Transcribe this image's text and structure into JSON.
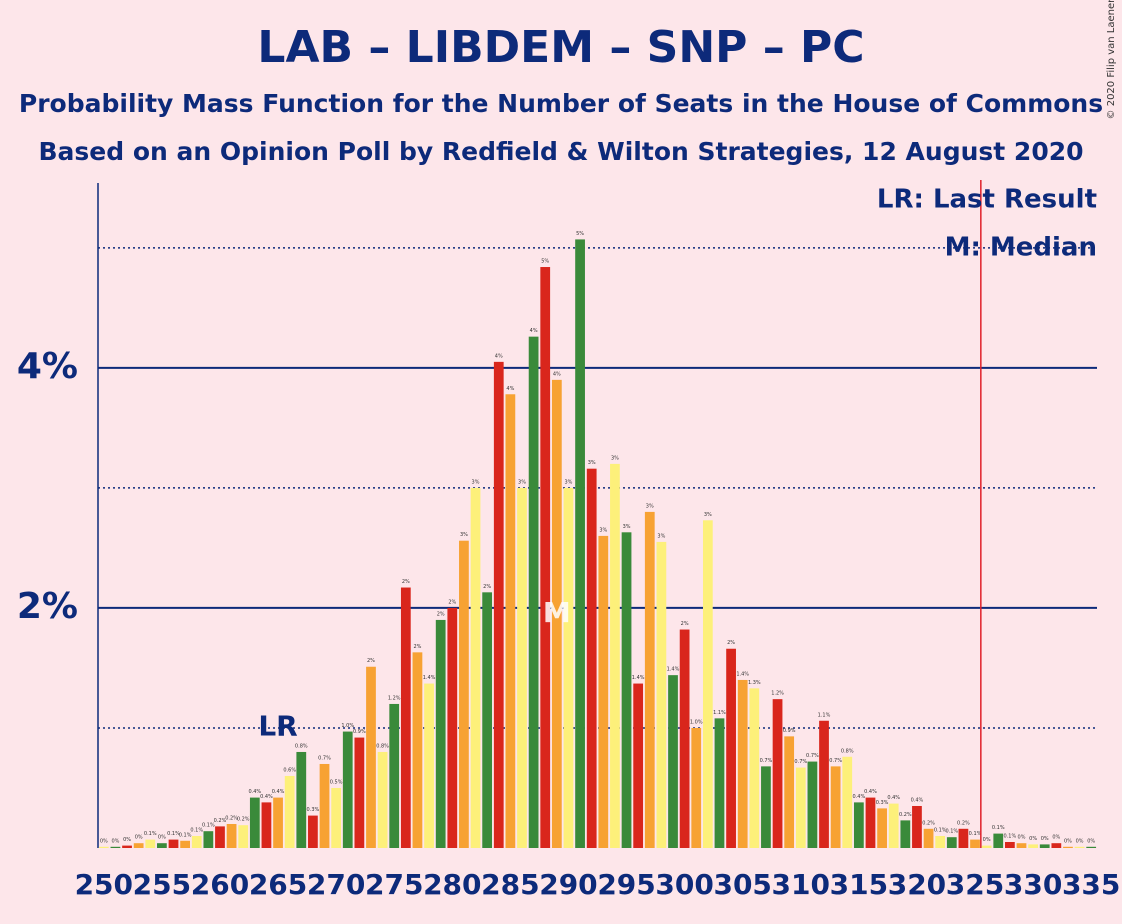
{
  "chart_data": {
    "type": "bar",
    "title": "LAB – LIBDEM – SNP – PC",
    "subtitle": "Probability Mass Function for the Number of Seats in the House of Commons",
    "subtitle2": "Based on an Opinion Poll by Redfield & Wilton Strategies, 12 August 2020",
    "copyright": "© 2020 Filip van Laenen",
    "legend": [
      "LR: Last Result",
      "M: Median"
    ],
    "x": [
      250,
      251,
      252,
      253,
      254,
      255,
      256,
      257,
      258,
      259,
      260,
      261,
      262,
      263,
      264,
      265,
      266,
      267,
      268,
      269,
      270,
      271,
      272,
      273,
      274,
      275,
      276,
      277,
      278,
      279,
      280,
      281,
      282,
      283,
      284,
      285,
      286,
      287,
      288,
      289,
      290,
      291,
      292,
      293,
      294,
      295,
      296,
      297,
      298,
      299,
      300,
      301,
      302,
      303,
      304,
      305,
      306,
      307,
      308,
      309,
      310,
      311,
      312,
      313,
      314,
      315,
      316,
      317,
      318,
      319,
      320,
      321,
      322,
      323,
      324,
      325,
      326,
      327,
      328,
      329,
      330,
      331,
      332,
      333,
      334,
      335
    ],
    "values": [
      0.01,
      0.01,
      0.02,
      0.04,
      0.07,
      0.04,
      0.07,
      0.06,
      0.1,
      0.14,
      0.18,
      0.2,
      0.19,
      0.42,
      0.38,
      0.42,
      0.6,
      0.8,
      0.27,
      0.7,
      0.5,
      0.97,
      0.92,
      1.51,
      0.8,
      1.2,
      2.17,
      1.63,
      1.37,
      1.9,
      2.0,
      2.56,
      3.0,
      2.13,
      4.05,
      3.78,
      3.0,
      4.26,
      4.84,
      3.9,
      3.0,
      5.07,
      3.16,
      2.6,
      3.2,
      2.63,
      1.37,
      2.8,
      2.55,
      1.44,
      1.82,
      1.0,
      2.73,
      1.08,
      1.66,
      1.4,
      1.33,
      0.68,
      1.24,
      0.93,
      0.67,
      0.72,
      1.06,
      0.68,
      0.76,
      0.38,
      0.42,
      0.33,
      0.37,
      0.23,
      0.35,
      0.16,
      0.1,
      0.09,
      0.16,
      0.07,
      0.02,
      0.12,
      0.05,
      0.04,
      0.03,
      0.03,
      0.04,
      0.01,
      0.01,
      0.01
    ],
    "value_labels": [
      "0%",
      "0%",
      "0%",
      "0%",
      "0.1%",
      "0%",
      "0.1%",
      "0.1%",
      "0.1%",
      "0.1%",
      "0.2%",
      "0.2%",
      "0.2%",
      "0.4%",
      "0.4%",
      "0.4%",
      "0.6%",
      "0.8%",
      "0.3%",
      "0.7%",
      "0.5%",
      "1.0%",
      "0.9%",
      "2%",
      "0.8%",
      "1.2%",
      "2%",
      "2%",
      "1.4%",
      "2%",
      "2%",
      "3%",
      "3%",
      "2%",
      "4%",
      "4%",
      "3%",
      "4%",
      "5%",
      "4%",
      "3%",
      "5%",
      "3%",
      "3%",
      "3%",
      "3%",
      "1.4%",
      "3%",
      "3%",
      "1.4%",
      "2%",
      "1.0%",
      "3%",
      "1.1%",
      "2%",
      "1.4%",
      "1.3%",
      "0.7%",
      "1.2%",
      "0.9%",
      "0.7%",
      "0.7%",
      "1.1%",
      "0.7%",
      "0.8%",
      "0.4%",
      "0.4%",
      "0.3%",
      "0.4%",
      "0.2%",
      "0.4%",
      "0.2%",
      "0.1%",
      "0.1%",
      "0.2%",
      "0.1%",
      "0%",
      "0.1%",
      "0.1%",
      "0%",
      "0%",
      "0%",
      "0%",
      "0%",
      "0%",
      "0%"
    ],
    "colors": [
      "#fdf07a",
      "#3a8a3a",
      "#d9261c",
      "#f7a233"
    ],
    "xlim": [
      249.5,
      335.5
    ],
    "xticks": [
      250,
      255,
      260,
      265,
      270,
      275,
      280,
      285,
      290,
      295,
      300,
      305,
      310,
      315,
      320,
      325,
      330,
      335
    ],
    "ylim": [
      0,
      5.54
    ],
    "yticks": [
      {
        "value": 2,
        "label": "2%"
      },
      {
        "value": 4,
        "label": "4%"
      }
    ],
    "minor_yticks": [
      1,
      3,
      5
    ],
    "grid": true,
    "last_result": {
      "x": 265,
      "label": "LR"
    },
    "median": {
      "x": 289,
      "label": "M"
    },
    "majority_line": 325.5,
    "majority_color": "#e0202a"
  }
}
